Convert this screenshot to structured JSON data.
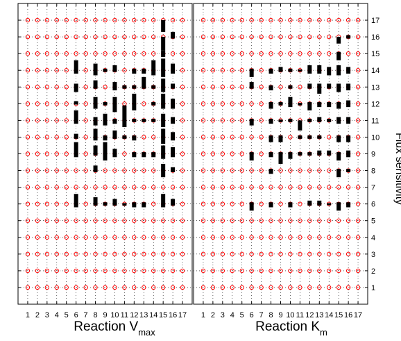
{
  "chart_data": {
    "type": "scatter",
    "grid": true,
    "marker_color": "#ff0000",
    "bar_color": "#000000",
    "grid_color": "#000000",
    "ylabel": "Flux sensitivity",
    "y_ticks": [
      "1",
      "2",
      "3",
      "4",
      "5",
      "6",
      "7",
      "8",
      "9",
      "10",
      "11",
      "12",
      "13",
      "14",
      "15",
      "16",
      "17"
    ],
    "ylim": [
      0,
      18
    ],
    "xlim": [
      0,
      18
    ],
    "panels": [
      {
        "xlabel_main": "Reaction V",
        "xlabel_sub": "max",
        "x_ticks": [
          "1",
          "2",
          "3",
          "4",
          "5",
          "6",
          "7",
          "8",
          "9",
          "10",
          "11",
          "12",
          "13",
          "14",
          "15",
          "16",
          "17"
        ],
        "marks": [
          {
            "x": 6,
            "y": 14,
            "lo": 13.8,
            "hi": 14.6
          },
          {
            "x": 6,
            "y": 13,
            "lo": 12.7,
            "hi": 13.2
          },
          {
            "x": 6,
            "y": 12,
            "lo": 11.95,
            "hi": 12.15
          },
          {
            "x": 6,
            "y": 11,
            "lo": 10.8,
            "hi": 11.6
          },
          {
            "x": 6,
            "y": 10,
            "lo": 9.9,
            "hi": 10.2
          },
          {
            "x": 6,
            "y": 9,
            "lo": 8.8,
            "hi": 9.7
          },
          {
            "x": 6,
            "y": 6,
            "lo": 5.8,
            "hi": 6.6
          },
          {
            "x": 8,
            "y": 14,
            "lo": 13.7,
            "hi": 14.4
          },
          {
            "x": 8,
            "y": 13,
            "lo": 12.9,
            "hi": 13.4
          },
          {
            "x": 8,
            "y": 12,
            "lo": 11.7,
            "hi": 12.4
          },
          {
            "x": 8,
            "y": 11,
            "lo": 10.7,
            "hi": 11.2
          },
          {
            "x": 8,
            "y": 10,
            "lo": 9.8,
            "hi": 10.5
          },
          {
            "x": 8,
            "y": 9,
            "lo": 8.9,
            "hi": 9.5
          },
          {
            "x": 8,
            "y": 8,
            "lo": 7.9,
            "hi": 8.3
          },
          {
            "x": 8,
            "y": 6,
            "lo": 5.9,
            "hi": 6.4
          },
          {
            "x": 9,
            "y": 14,
            "lo": 13.9,
            "hi": 14.1
          },
          {
            "x": 9,
            "y": 12,
            "lo": 11.9,
            "hi": 12.1
          },
          {
            "x": 9,
            "y": 11,
            "lo": 10.7,
            "hi": 11.4
          },
          {
            "x": 9,
            "y": 10,
            "lo": 9.8,
            "hi": 10.1
          },
          {
            "x": 9,
            "y": 9,
            "lo": 8.6,
            "hi": 9.7
          },
          {
            "x": 9,
            "y": 6,
            "lo": 5.9,
            "hi": 6.1
          },
          {
            "x": 10,
            "y": 14,
            "lo": 13.9,
            "hi": 14.3
          },
          {
            "x": 10,
            "y": 13,
            "lo": 12.8,
            "hi": 13.3
          },
          {
            "x": 10,
            "y": 12,
            "lo": 11.5,
            "hi": 12.4
          },
          {
            "x": 10,
            "y": 11,
            "lo": 10.8,
            "hi": 11.1
          },
          {
            "x": 10,
            "y": 10,
            "lo": 9.9,
            "hi": 10.4
          },
          {
            "x": 10,
            "y": 9,
            "lo": 8.8,
            "hi": 9.3
          },
          {
            "x": 10,
            "y": 6,
            "lo": 5.9,
            "hi": 6.3
          },
          {
            "x": 11,
            "y": 13,
            "lo": 12.9,
            "hi": 13.1
          },
          {
            "x": 11,
            "y": 11,
            "lo": 10.6,
            "hi": 11.9
          },
          {
            "x": 11,
            "y": 10,
            "lo": 9.9,
            "hi": 10.1
          },
          {
            "x": 11,
            "y": 6,
            "lo": 5.9,
            "hi": 6.05
          },
          {
            "x": 12,
            "y": 14,
            "lo": 13.8,
            "hi": 14.1
          },
          {
            "x": 12,
            "y": 13,
            "lo": 12.9,
            "hi": 13.1
          },
          {
            "x": 12,
            "y": 12,
            "lo": 11.6,
            "hi": 12.6
          },
          {
            "x": 12,
            "y": 11,
            "lo": 10.9,
            "hi": 11.1
          },
          {
            "x": 12,
            "y": 10,
            "lo": 9.8,
            "hi": 10.1
          },
          {
            "x": 12,
            "y": 9,
            "lo": 8.8,
            "hi": 9.1
          },
          {
            "x": 12,
            "y": 6,
            "lo": 5.8,
            "hi": 6.1
          },
          {
            "x": 13,
            "y": 14,
            "lo": 13.8,
            "hi": 14.1
          },
          {
            "x": 13,
            "y": 13,
            "lo": 12.9,
            "hi": 13.6
          },
          {
            "x": 13,
            "y": 11,
            "lo": 10.9,
            "hi": 11.1
          },
          {
            "x": 13,
            "y": 9,
            "lo": 8.8,
            "hi": 9.1
          },
          {
            "x": 13,
            "y": 6,
            "lo": 5.8,
            "hi": 6.1
          },
          {
            "x": 14,
            "y": 14,
            "lo": 13.7,
            "hi": 14.6
          },
          {
            "x": 14,
            "y": 13,
            "lo": 12.9,
            "hi": 13.1
          },
          {
            "x": 14,
            "y": 12,
            "lo": 11.9,
            "hi": 12.1
          },
          {
            "x": 14,
            "y": 11,
            "lo": 10.9,
            "hi": 11.1
          },
          {
            "x": 14,
            "y": 9,
            "lo": 8.8,
            "hi": 9.1
          },
          {
            "x": 15,
            "y": 17,
            "lo": 16.3,
            "hi": 17.0
          },
          {
            "x": 15,
            "y": 16,
            "lo": 15.2,
            "hi": 16.0
          },
          {
            "x": 15,
            "y": 15,
            "lo": 14.8,
            "hi": 15.2
          },
          {
            "x": 15,
            "y": 14,
            "lo": 13.6,
            "hi": 14.7
          },
          {
            "x": 15,
            "y": 13,
            "lo": 12.7,
            "hi": 13.5
          },
          {
            "x": 15,
            "y": 12,
            "lo": 11.7,
            "hi": 12.6
          },
          {
            "x": 15,
            "y": 11,
            "lo": 10.6,
            "hi": 11.4
          },
          {
            "x": 15,
            "y": 10,
            "lo": 9.6,
            "hi": 10.5
          },
          {
            "x": 15,
            "y": 9,
            "lo": 8.7,
            "hi": 9.5
          },
          {
            "x": 15,
            "y": 8,
            "lo": 7.6,
            "hi": 8.4
          },
          {
            "x": 15,
            "y": 6,
            "lo": 5.8,
            "hi": 6.6
          },
          {
            "x": 16,
            "y": 16,
            "lo": 15.9,
            "hi": 16.3
          },
          {
            "x": 16,
            "y": 14,
            "lo": 13.8,
            "hi": 14.4
          },
          {
            "x": 16,
            "y": 13,
            "lo": 12.9,
            "hi": 13.2
          },
          {
            "x": 16,
            "y": 12,
            "lo": 11.7,
            "hi": 12.3
          },
          {
            "x": 16,
            "y": 11,
            "lo": 10.8,
            "hi": 11.2
          },
          {
            "x": 16,
            "y": 10,
            "lo": 9.8,
            "hi": 10.3
          },
          {
            "x": 16,
            "y": 9,
            "lo": 8.8,
            "hi": 9.4
          },
          {
            "x": 16,
            "y": 8,
            "lo": 7.9,
            "hi": 8.2
          },
          {
            "x": 16,
            "y": 6,
            "lo": 5.9,
            "hi": 6.3
          }
        ]
      },
      {
        "xlabel_main": "Reaction K",
        "xlabel_sub": "m",
        "x_ticks": [
          "1",
          "2",
          "3",
          "4",
          "5",
          "6",
          "7",
          "8",
          "9",
          "10",
          "11",
          "12",
          "13",
          "14",
          "15",
          "16",
          "17"
        ],
        "marks": [
          {
            "x": 6,
            "y": 14,
            "lo": 13.6,
            "hi": 14.1
          },
          {
            "x": 6,
            "y": 13,
            "lo": 12.9,
            "hi": 13.3
          },
          {
            "x": 6,
            "y": 11,
            "lo": 10.7,
            "hi": 11.1
          },
          {
            "x": 6,
            "y": 9,
            "lo": 8.6,
            "hi": 9.1
          },
          {
            "x": 6,
            "y": 6,
            "lo": 5.6,
            "hi": 6.1
          },
          {
            "x": 8,
            "y": 14,
            "lo": 13.8,
            "hi": 14.1
          },
          {
            "x": 8,
            "y": 13,
            "lo": 12.8,
            "hi": 13.1
          },
          {
            "x": 8,
            "y": 12,
            "lo": 11.7,
            "hi": 12.1
          },
          {
            "x": 8,
            "y": 11,
            "lo": 10.8,
            "hi": 11.1
          },
          {
            "x": 8,
            "y": 10,
            "lo": 9.7,
            "hi": 10.1
          },
          {
            "x": 8,
            "y": 9,
            "lo": 8.8,
            "hi": 9.1
          },
          {
            "x": 8,
            "y": 8,
            "lo": 7.8,
            "hi": 8.1
          },
          {
            "x": 8,
            "y": 6,
            "lo": 5.8,
            "hi": 6.1
          },
          {
            "x": 9,
            "y": 14,
            "lo": 13.9,
            "hi": 14.2
          },
          {
            "x": 9,
            "y": 12,
            "lo": 11.9,
            "hi": 12.1
          },
          {
            "x": 9,
            "y": 11,
            "lo": 10.9,
            "hi": 11.05
          },
          {
            "x": 9,
            "y": 10,
            "lo": 9.7,
            "hi": 10.1
          },
          {
            "x": 9,
            "y": 9,
            "lo": 8.4,
            "hi": 9.1
          },
          {
            "x": 10,
            "y": 14,
            "lo": 13.9,
            "hi": 14.1
          },
          {
            "x": 10,
            "y": 13,
            "lo": 12.9,
            "hi": 13.1
          },
          {
            "x": 10,
            "y": 12,
            "lo": 11.8,
            "hi": 12.4
          },
          {
            "x": 10,
            "y": 11,
            "lo": 10.9,
            "hi": 11.1
          },
          {
            "x": 10,
            "y": 9,
            "lo": 8.7,
            "hi": 9.1
          },
          {
            "x": 10,
            "y": 6,
            "lo": 5.8,
            "hi": 6.1
          },
          {
            "x": 11,
            "y": 14,
            "lo": 13.95,
            "hi": 14.05
          },
          {
            "x": 11,
            "y": 12,
            "lo": 11.9,
            "hi": 12.05
          },
          {
            "x": 11,
            "y": 11,
            "lo": 10.4,
            "hi": 11.0
          },
          {
            "x": 11,
            "y": 10,
            "lo": 9.9,
            "hi": 10.1
          },
          {
            "x": 11,
            "y": 9,
            "lo": 8.9,
            "hi": 9.1
          },
          {
            "x": 12,
            "y": 14,
            "lo": 13.8,
            "hi": 14.3
          },
          {
            "x": 12,
            "y": 13,
            "lo": 12.9,
            "hi": 13.2
          },
          {
            "x": 12,
            "y": 12,
            "lo": 11.6,
            "hi": 12.1
          },
          {
            "x": 12,
            "y": 11,
            "lo": 10.9,
            "hi": 11.1
          },
          {
            "x": 12,
            "y": 10,
            "lo": 9.9,
            "hi": 10.1
          },
          {
            "x": 12,
            "y": 9,
            "lo": 8.9,
            "hi": 9.1
          },
          {
            "x": 12,
            "y": 6,
            "lo": 5.9,
            "hi": 6.2
          },
          {
            "x": 13,
            "y": 14,
            "lo": 13.8,
            "hi": 14.3
          },
          {
            "x": 13,
            "y": 13,
            "lo": 12.6,
            "hi": 13.2
          },
          {
            "x": 13,
            "y": 12,
            "lo": 11.8,
            "hi": 12.1
          },
          {
            "x": 13,
            "y": 11,
            "lo": 10.9,
            "hi": 11.2
          },
          {
            "x": 13,
            "y": 10,
            "lo": 9.9,
            "hi": 10.1
          },
          {
            "x": 13,
            "y": 9,
            "lo": 8.9,
            "hi": 9.2
          },
          {
            "x": 13,
            "y": 6,
            "lo": 5.9,
            "hi": 6.2
          },
          {
            "x": 14,
            "y": 14,
            "lo": 13.7,
            "hi": 14.2
          },
          {
            "x": 14,
            "y": 13,
            "lo": 12.9,
            "hi": 13.2
          },
          {
            "x": 14,
            "y": 12,
            "lo": 11.8,
            "hi": 12.1
          },
          {
            "x": 14,
            "y": 11,
            "lo": 10.9,
            "hi": 11.1
          },
          {
            "x": 14,
            "y": 9,
            "lo": 8.9,
            "hi": 9.2
          },
          {
            "x": 14,
            "y": 6,
            "lo": 5.95,
            "hi": 6.05
          },
          {
            "x": 15,
            "y": 16,
            "lo": 15.6,
            "hi": 16.0
          },
          {
            "x": 15,
            "y": 15,
            "lo": 14.6,
            "hi": 15.1
          },
          {
            "x": 15,
            "y": 14,
            "lo": 13.7,
            "hi": 14.3
          },
          {
            "x": 15,
            "y": 13,
            "lo": 12.7,
            "hi": 13.2
          },
          {
            "x": 15,
            "y": 12,
            "lo": 11.7,
            "hi": 12.1
          },
          {
            "x": 15,
            "y": 11,
            "lo": 10.8,
            "hi": 11.2
          },
          {
            "x": 15,
            "y": 10,
            "lo": 9.7,
            "hi": 10.1
          },
          {
            "x": 15,
            "y": 9,
            "lo": 8.6,
            "hi": 9.1
          },
          {
            "x": 15,
            "y": 8,
            "lo": 7.6,
            "hi": 8.1
          },
          {
            "x": 15,
            "y": 6,
            "lo": 5.6,
            "hi": 6.1
          },
          {
            "x": 16,
            "y": 16,
            "lo": 15.9,
            "hi": 16.1
          },
          {
            "x": 16,
            "y": 14,
            "lo": 13.8,
            "hi": 14.2
          },
          {
            "x": 16,
            "y": 13,
            "lo": 12.8,
            "hi": 13.2
          },
          {
            "x": 16,
            "y": 12,
            "lo": 11.8,
            "hi": 12.2
          },
          {
            "x": 16,
            "y": 11,
            "lo": 10.8,
            "hi": 11.2
          },
          {
            "x": 16,
            "y": 10,
            "lo": 9.7,
            "hi": 10.1
          },
          {
            "x": 16,
            "y": 9,
            "lo": 8.8,
            "hi": 9.2
          },
          {
            "x": 16,
            "y": 8,
            "lo": 7.9,
            "hi": 8.1
          },
          {
            "x": 16,
            "y": 6,
            "lo": 5.8,
            "hi": 6.1
          }
        ]
      }
    ]
  }
}
